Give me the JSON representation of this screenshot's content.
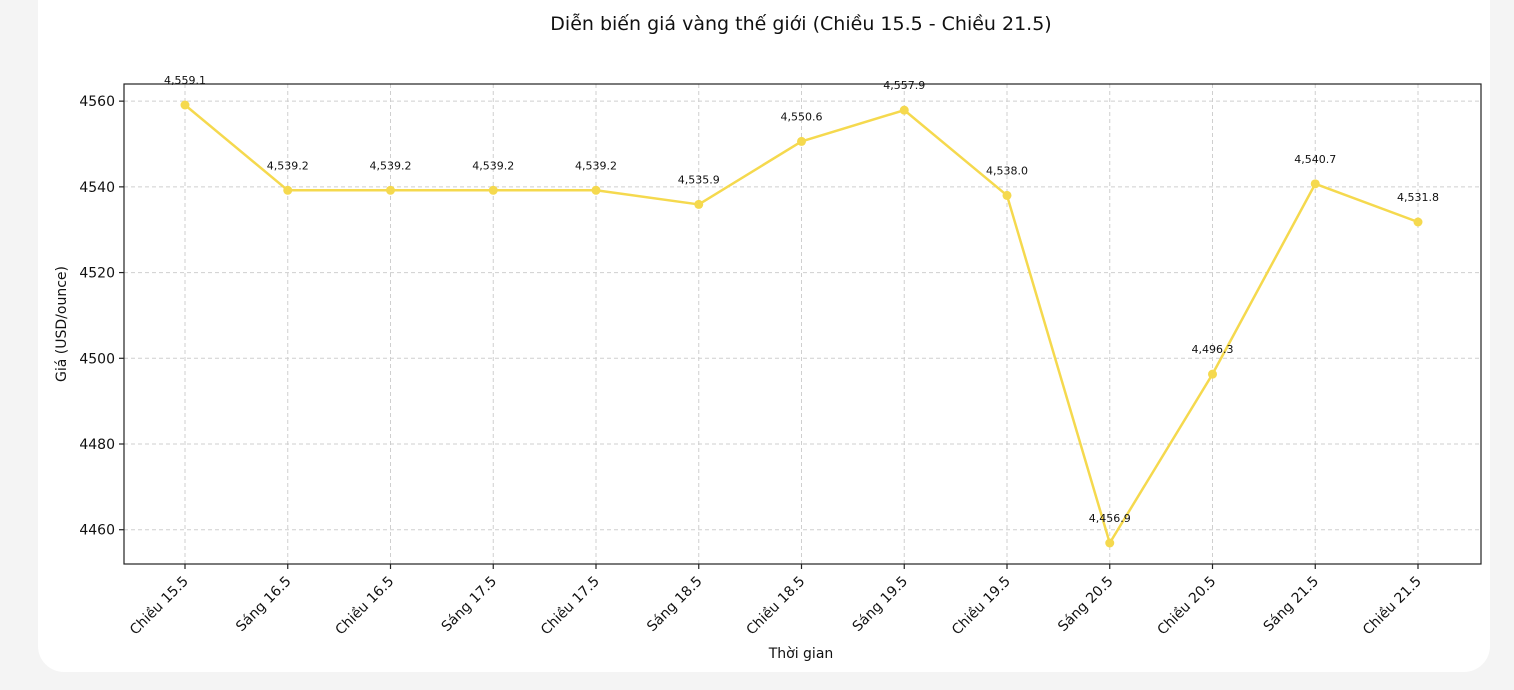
{
  "chart_data": {
    "type": "line",
    "title": "Diễn biến giá vàng thế giới (Chiều 15.5 - Chiều 21.5)",
    "xlabel": "Thời gian",
    "ylabel": "Giá (USD/ounce)",
    "categories": [
      "Chiều 15.5",
      "Sáng 16.5",
      "Chiều 16.5",
      "Sáng 17.5",
      "Chiều 17.5",
      "Sáng 18.5",
      "Chiều 18.5",
      "Sáng 19.5",
      "Chiều 19.5",
      "Sáng 20.5",
      "Chiều 20.5",
      "Sáng 21.5",
      "Chiều 21.5"
    ],
    "values": [
      4559.1,
      4539.2,
      4539.2,
      4539.2,
      4539.2,
      4535.9,
      4550.6,
      4557.9,
      4538.0,
      4456.9,
      4496.3,
      4540.7,
      4531.8
    ],
    "data_labels": [
      "4,559.1",
      "4,539.2",
      "4,539.2",
      "4,539.2",
      "4,539.2",
      "4,535.9",
      "4,550.6",
      "4,557.9",
      "4,538.0",
      "4,456.9",
      "4,496.3",
      "4,540.7",
      "4,531.8"
    ],
    "yticks": [
      4460,
      4480,
      4500,
      4520,
      4540,
      4560
    ],
    "ylim": [
      4452,
      4564
    ],
    "grid": true,
    "line_color": "#f5d94e"
  }
}
